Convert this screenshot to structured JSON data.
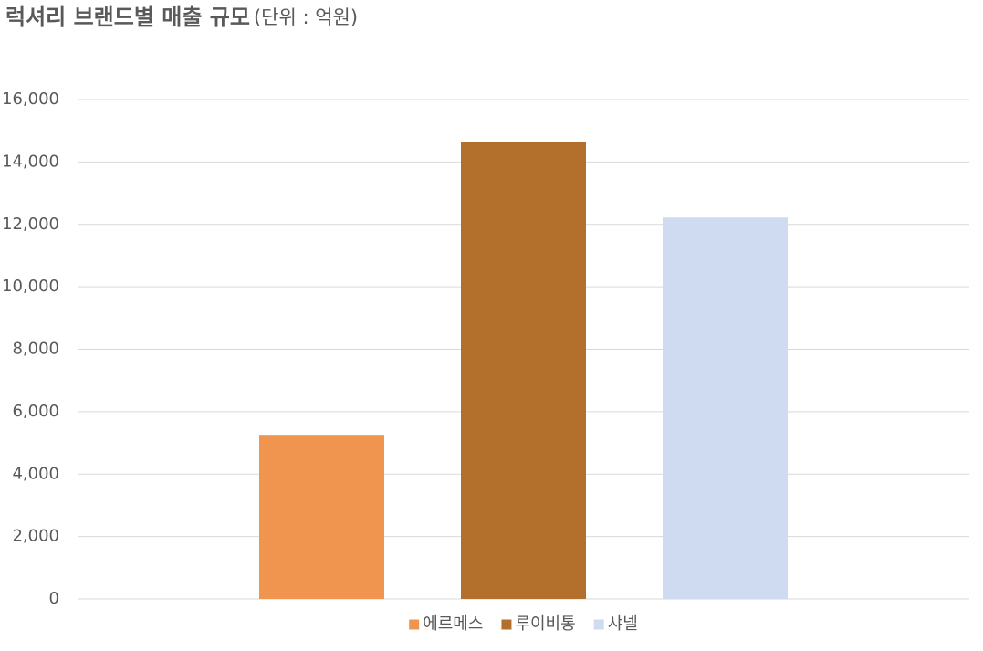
{
  "chart_data": {
    "type": "bar",
    "title": "럭셔리 브랜드별 매출 규모",
    "subtitle": "(단위 : 억원)",
    "categories": [
      null
    ],
    "series": [
      {
        "name": "에르메스",
        "color": "#f0954f",
        "values": [
          5260
        ]
      },
      {
        "name": "루이비통",
        "color": "#b3702d",
        "values": [
          14650
        ]
      },
      {
        "name": "샤넬",
        "color": "#cfdbf0",
        "values": [
          12220
        ]
      }
    ],
    "ylim": [
      0,
      16000
    ],
    "yticks": [
      0,
      {
        "value": 2000,
        "label": "2,000"
      },
      {
        "value": 4000,
        "label": "4,000"
      },
      {
        "value": 6000,
        "label": "6,000"
      },
      {
        "value": 8000,
        "label": "8,000"
      },
      {
        "value": 10000,
        "label": "10,000"
      },
      {
        "value": 12000,
        "label": "12,000"
      },
      {
        "value": 14000,
        "label": "14,000"
      },
      {
        "value": 16000,
        "label": "16,000"
      }
    ],
    "grid": true,
    "legend": "bottom"
  }
}
